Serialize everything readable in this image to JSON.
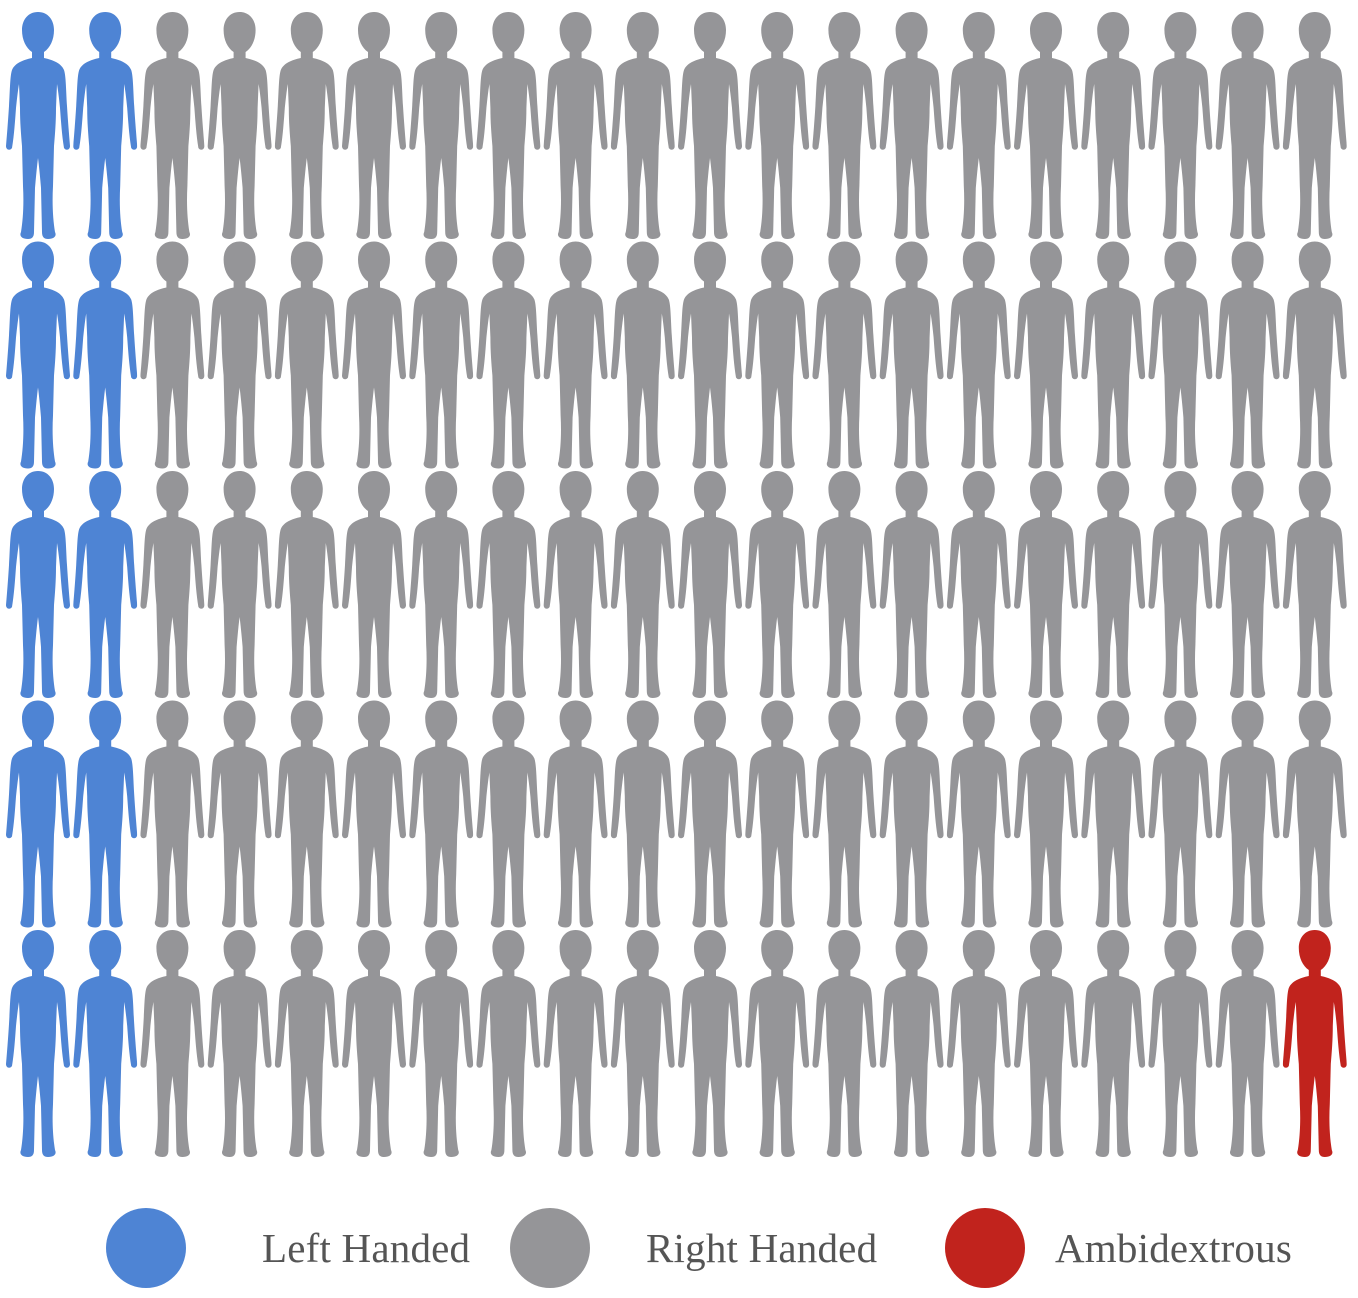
{
  "chart_data": {
    "type": "pictogram",
    "rows": 5,
    "columns": 20,
    "categories": [
      {
        "name": "Left Handed",
        "count": 10,
        "color": "#4E84D4",
        "icon": "person-icon"
      },
      {
        "name": "Right Handed",
        "count": 89,
        "color": "#959598",
        "icon": "person-icon"
      },
      {
        "name": "Ambidextrous",
        "count": 1,
        "color": "#C1231D",
        "icon": "person-icon"
      }
    ],
    "grid_layout": [
      [
        "Left Handed",
        "Left Handed",
        "Right Handed",
        "Right Handed",
        "Right Handed",
        "Right Handed",
        "Right Handed",
        "Right Handed",
        "Right Handed",
        "Right Handed",
        "Right Handed",
        "Right Handed",
        "Right Handed",
        "Right Handed",
        "Right Handed",
        "Right Handed",
        "Right Handed",
        "Right Handed",
        "Right Handed",
        "Right Handed"
      ],
      [
        "Left Handed",
        "Left Handed",
        "Right Handed",
        "Right Handed",
        "Right Handed",
        "Right Handed",
        "Right Handed",
        "Right Handed",
        "Right Handed",
        "Right Handed",
        "Right Handed",
        "Right Handed",
        "Right Handed",
        "Right Handed",
        "Right Handed",
        "Right Handed",
        "Right Handed",
        "Right Handed",
        "Right Handed",
        "Right Handed"
      ],
      [
        "Left Handed",
        "Left Handed",
        "Right Handed",
        "Right Handed",
        "Right Handed",
        "Right Handed",
        "Right Handed",
        "Right Handed",
        "Right Handed",
        "Right Handed",
        "Right Handed",
        "Right Handed",
        "Right Handed",
        "Right Handed",
        "Right Handed",
        "Right Handed",
        "Right Handed",
        "Right Handed",
        "Right Handed",
        "Right Handed"
      ],
      [
        "Left Handed",
        "Left Handed",
        "Right Handed",
        "Right Handed",
        "Right Handed",
        "Right Handed",
        "Right Handed",
        "Right Handed",
        "Right Handed",
        "Right Handed",
        "Right Handed",
        "Right Handed",
        "Right Handed",
        "Right Handed",
        "Right Handed",
        "Right Handed",
        "Right Handed",
        "Right Handed",
        "Right Handed",
        "Right Handed"
      ],
      [
        "Left Handed",
        "Left Handed",
        "Right Handed",
        "Right Handed",
        "Right Handed",
        "Right Handed",
        "Right Handed",
        "Right Handed",
        "Right Handed",
        "Right Handed",
        "Right Handed",
        "Right Handed",
        "Right Handed",
        "Right Handed",
        "Right Handed",
        "Right Handed",
        "Right Handed",
        "Right Handed",
        "Right Handed",
        "Ambidextrous"
      ]
    ]
  },
  "legend": {
    "items": [
      {
        "label": "Left Handed",
        "color": "#4E84D4"
      },
      {
        "label": "Right Handed",
        "color": "#959598"
      },
      {
        "label": "Ambidextrous",
        "color": "#C1231D"
      }
    ]
  }
}
